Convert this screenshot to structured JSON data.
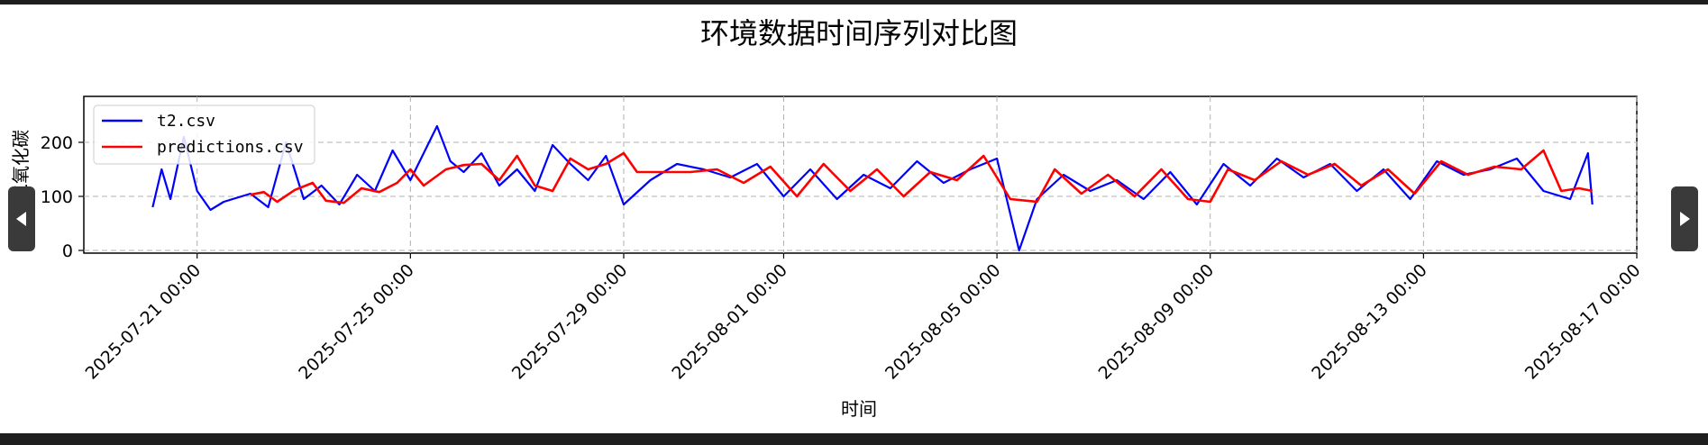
{
  "viewer": {
    "prev_icon": "chevron-left-icon",
    "next_icon": "chevron-right-icon"
  },
  "chart_data": {
    "type": "line",
    "title": "环境数据时间序列对比图",
    "xlabel": "时间",
    "ylabel": "二氧化碳",
    "x_axis_type": "datetime",
    "xlim": [
      "2025-07-18 21:00",
      "2025-08-17 00:00"
    ],
    "ylim": [
      -5,
      285
    ],
    "x_ticks": [
      "2025-07-21 00:00",
      "2025-07-25 00:00",
      "2025-07-29 00:00",
      "2025-08-01 00:00",
      "2025-08-05 00:00",
      "2025-08-09 00:00",
      "2025-08-13 00:00",
      "2025-08-17 00:00"
    ],
    "y_ticks": [
      0,
      100,
      200
    ],
    "grid": true,
    "legend_position": "upper-left",
    "series": [
      {
        "name": "t2.csv",
        "color": "#0000ff",
        "points": [
          [
            "2025-07-20 04:00",
            80
          ],
          [
            "2025-07-20 08:00",
            150
          ],
          [
            "2025-07-20 12:00",
            95
          ],
          [
            "2025-07-20 18:00",
            210
          ],
          [
            "2025-07-21 00:00",
            110
          ],
          [
            "2025-07-21 06:00",
            75
          ],
          [
            "2025-07-21 12:00",
            90
          ],
          [
            "2025-07-22 00:00",
            105
          ],
          [
            "2025-07-22 08:00",
            80
          ],
          [
            "2025-07-22 16:00",
            200
          ],
          [
            "2025-07-23 00:00",
            95
          ],
          [
            "2025-07-23 08:00",
            120
          ],
          [
            "2025-07-23 16:00",
            85
          ],
          [
            "2025-07-24 00:00",
            140
          ],
          [
            "2025-07-24 08:00",
            110
          ],
          [
            "2025-07-24 16:00",
            185
          ],
          [
            "2025-07-25 00:00",
            130
          ],
          [
            "2025-07-25 06:00",
            180
          ],
          [
            "2025-07-25 12:00",
            230
          ],
          [
            "2025-07-25 18:00",
            165
          ],
          [
            "2025-07-26 00:00",
            145
          ],
          [
            "2025-07-26 08:00",
            180
          ],
          [
            "2025-07-26 16:00",
            120
          ],
          [
            "2025-07-27 00:00",
            150
          ],
          [
            "2025-07-27 08:00",
            110
          ],
          [
            "2025-07-27 16:00",
            195
          ],
          [
            "2025-07-28 00:00",
            160
          ],
          [
            "2025-07-28 08:00",
            130
          ],
          [
            "2025-07-28 16:00",
            175
          ],
          [
            "2025-07-29 00:00",
            85
          ],
          [
            "2025-07-29 12:00",
            130
          ],
          [
            "2025-07-30 00:00",
            160
          ],
          [
            "2025-07-30 12:00",
            150
          ],
          [
            "2025-07-31 00:00",
            135
          ],
          [
            "2025-07-31 12:00",
            160
          ],
          [
            "2025-08-01 00:00",
            100
          ],
          [
            "2025-08-01 12:00",
            150
          ],
          [
            "2025-08-02 00:00",
            95
          ],
          [
            "2025-08-02 12:00",
            140
          ],
          [
            "2025-08-03 00:00",
            115
          ],
          [
            "2025-08-03 12:00",
            165
          ],
          [
            "2025-08-04 00:00",
            125
          ],
          [
            "2025-08-04 12:00",
            150
          ],
          [
            "2025-08-05 00:00",
            170
          ],
          [
            "2025-08-05 10:00",
            0
          ],
          [
            "2025-08-05 18:00",
            95
          ],
          [
            "2025-08-06 06:00",
            140
          ],
          [
            "2025-08-06 18:00",
            110
          ],
          [
            "2025-08-07 06:00",
            130
          ],
          [
            "2025-08-07 18:00",
            95
          ],
          [
            "2025-08-08 06:00",
            145
          ],
          [
            "2025-08-08 18:00",
            85
          ],
          [
            "2025-08-09 06:00",
            160
          ],
          [
            "2025-08-09 18:00",
            120
          ],
          [
            "2025-08-10 06:00",
            170
          ],
          [
            "2025-08-10 18:00",
            135
          ],
          [
            "2025-08-11 06:00",
            160
          ],
          [
            "2025-08-11 18:00",
            110
          ],
          [
            "2025-08-12 06:00",
            150
          ],
          [
            "2025-08-12 18:00",
            95
          ],
          [
            "2025-08-13 06:00",
            165
          ],
          [
            "2025-08-13 18:00",
            140
          ],
          [
            "2025-08-14 06:00",
            150
          ],
          [
            "2025-08-14 18:00",
            170
          ],
          [
            "2025-08-15 06:00",
            110
          ],
          [
            "2025-08-15 18:00",
            95
          ],
          [
            "2025-08-16 02:00",
            180
          ],
          [
            "2025-08-16 04:00",
            85
          ]
        ]
      },
      {
        "name": "predictions.csv",
        "color": "#ff0000",
        "points": [
          [
            "2025-07-22 00:00",
            103
          ],
          [
            "2025-07-22 06:00",
            108
          ],
          [
            "2025-07-22 12:00",
            90
          ],
          [
            "2025-07-22 20:00",
            112
          ],
          [
            "2025-07-23 04:00",
            125
          ],
          [
            "2025-07-23 10:00",
            92
          ],
          [
            "2025-07-23 18:00",
            88
          ],
          [
            "2025-07-24 02:00",
            115
          ],
          [
            "2025-07-24 10:00",
            108
          ],
          [
            "2025-07-24 18:00",
            125
          ],
          [
            "2025-07-25 00:00",
            150
          ],
          [
            "2025-07-25 06:00",
            120
          ],
          [
            "2025-07-25 16:00",
            150
          ],
          [
            "2025-07-26 00:00",
            158
          ],
          [
            "2025-07-26 08:00",
            160
          ],
          [
            "2025-07-26 16:00",
            130
          ],
          [
            "2025-07-27 00:00",
            175
          ],
          [
            "2025-07-27 08:00",
            120
          ],
          [
            "2025-07-27 16:00",
            110
          ],
          [
            "2025-07-28 00:00",
            170
          ],
          [
            "2025-07-28 08:00",
            150
          ],
          [
            "2025-07-28 16:00",
            160
          ],
          [
            "2025-07-29 00:00",
            180
          ],
          [
            "2025-07-29 06:00",
            145
          ],
          [
            "2025-07-30 06:00",
            145
          ],
          [
            "2025-07-30 18:00",
            150
          ],
          [
            "2025-07-31 06:00",
            125
          ],
          [
            "2025-07-31 18:00",
            155
          ],
          [
            "2025-08-01 06:00",
            100
          ],
          [
            "2025-08-01 18:00",
            160
          ],
          [
            "2025-08-02 06:00",
            110
          ],
          [
            "2025-08-02 18:00",
            150
          ],
          [
            "2025-08-03 06:00",
            100
          ],
          [
            "2025-08-03 18:00",
            145
          ],
          [
            "2025-08-04 06:00",
            130
          ],
          [
            "2025-08-04 18:00",
            175
          ],
          [
            "2025-08-05 06:00",
            95
          ],
          [
            "2025-08-05 18:00",
            90
          ],
          [
            "2025-08-06 02:00",
            150
          ],
          [
            "2025-08-06 14:00",
            105
          ],
          [
            "2025-08-07 02:00",
            140
          ],
          [
            "2025-08-07 14:00",
            100
          ],
          [
            "2025-08-08 02:00",
            150
          ],
          [
            "2025-08-08 14:00",
            95
          ],
          [
            "2025-08-09 00:00",
            90
          ],
          [
            "2025-08-09 08:00",
            150
          ],
          [
            "2025-08-09 20:00",
            130
          ],
          [
            "2025-08-10 08:00",
            165
          ],
          [
            "2025-08-10 20:00",
            140
          ],
          [
            "2025-08-11 08:00",
            160
          ],
          [
            "2025-08-11 20:00",
            120
          ],
          [
            "2025-08-12 08:00",
            150
          ],
          [
            "2025-08-12 20:00",
            105
          ],
          [
            "2025-08-13 08:00",
            165
          ],
          [
            "2025-08-13 20:00",
            140
          ],
          [
            "2025-08-14 08:00",
            155
          ],
          [
            "2025-08-14 20:00",
            150
          ],
          [
            "2025-08-15 06:00",
            185
          ],
          [
            "2025-08-15 14:00",
            110
          ],
          [
            "2025-08-15 22:00",
            115
          ],
          [
            "2025-08-16 04:00",
            110
          ]
        ]
      }
    ]
  }
}
